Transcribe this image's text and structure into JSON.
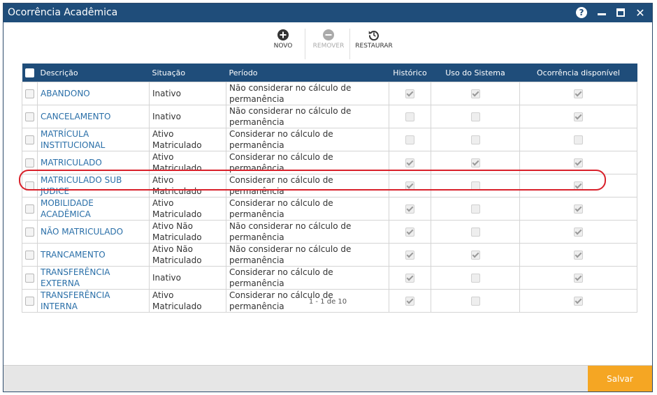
{
  "window": {
    "title": "Ocorrência Acadêmica"
  },
  "titlebar_icons": {
    "help": "?",
    "close": "✕"
  },
  "toolbar": {
    "novo_label": "NOVO",
    "remover_label": "REMOVER",
    "restaurar_label": "RESTAURAR"
  },
  "table": {
    "headers": {
      "descricao": "Descrição",
      "situacao": "Situação",
      "periodo": "Período",
      "historico": "Histórico",
      "uso_sistema": "Uso do Sistema",
      "ocorrencia_disponivel": "Ocorrência disponível"
    },
    "rows": [
      {
        "descricao": "ABANDONO",
        "situacao": "Inativo",
        "periodo": "Não considerar no cálculo de permanência",
        "historico": true,
        "uso_sistema": true,
        "ocorrencia_disponivel": true
      },
      {
        "descricao": "CANCELAMENTO",
        "situacao": "Inativo",
        "periodo": "Não considerar no cálculo de permanência",
        "historico": false,
        "uso_sistema": false,
        "ocorrencia_disponivel": true
      },
      {
        "descricao": "MATRÍCULA INSTITUCIONAL",
        "situacao": "Ativo Matriculado",
        "periodo": "Considerar no cálculo de permanência",
        "historico": false,
        "uso_sistema": false,
        "ocorrencia_disponivel": false
      },
      {
        "descricao": "MATRICULADO",
        "situacao": "Ativo Matriculado",
        "periodo": "Considerar no cálculo de permanência",
        "historico": true,
        "uso_sistema": true,
        "ocorrencia_disponivel": true
      },
      {
        "descricao": "MATRICULADO SUB JUDICE",
        "situacao": "Ativo Matriculado",
        "periodo": "Considerar no cálculo de permanência",
        "historico": true,
        "uso_sistema": false,
        "ocorrencia_disponivel": true
      },
      {
        "descricao": "MOBILIDADE ACADÊMICA",
        "situacao": "Ativo Matriculado",
        "periodo": "Considerar no cálculo de permanência",
        "historico": true,
        "uso_sistema": false,
        "ocorrencia_disponivel": true
      },
      {
        "descricao": "NÃO MATRICULADO",
        "situacao": "Ativo Não Matriculado",
        "periodo": "Não considerar no cálculo de permanência",
        "historico": true,
        "uso_sistema": false,
        "ocorrencia_disponivel": true
      },
      {
        "descricao": "TRANCAMENTO",
        "situacao": "Ativo Não Matriculado",
        "periodo": "Não considerar no cálculo de permanência",
        "historico": true,
        "uso_sistema": true,
        "ocorrencia_disponivel": true
      },
      {
        "descricao": "TRANSFERÊNCIA EXTERNA",
        "situacao": "Inativo",
        "periodo": "Considerar no cálculo de permanência",
        "historico": true,
        "uso_sistema": false,
        "ocorrencia_disponivel": true
      },
      {
        "descricao": "TRANSFERÊNCIA INTERNA",
        "situacao": "Ativo Matriculado",
        "periodo": "Considerar no cálculo de permanência",
        "historico": true,
        "uso_sistema": false,
        "ocorrencia_disponivel": true
      }
    ]
  },
  "pager": {
    "text": "1 - 1 de 10"
  },
  "footer": {
    "save_label": "Salvar"
  },
  "colors": {
    "header_bg": "#1f4d7a",
    "link": "#2a6fa8",
    "save_button": "#f5a623",
    "highlight": "#d9202a"
  }
}
